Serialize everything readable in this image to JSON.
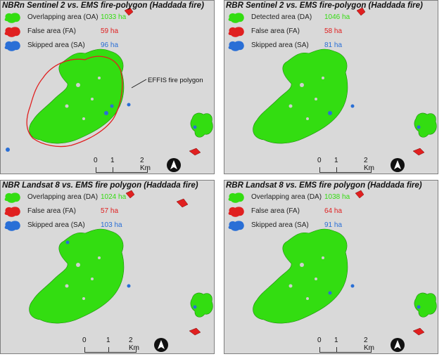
{
  "panels": [
    {
      "title": "NBRn Sentinel 2 vs. EMS fire-polygon (Haddada fire)",
      "legend": [
        {
          "label": "Overlapping area (OA)",
          "value": "1033 ha",
          "color": "#33dd11"
        },
        {
          "label": "False area (FA)",
          "value": "59 ha",
          "color": "#e02020"
        },
        {
          "label": "Skipped area (SA)",
          "value": "96 ha",
          "color": "#2a6fd6"
        }
      ],
      "annotation": "EFFIS fire polygon",
      "scale_labels": [
        "0",
        "1",
        "2 Km"
      ]
    },
    {
      "title": "RBR Sentinel 2 vs. EMS fire-polygon (Haddada fire)",
      "legend": [
        {
          "label": "Detected area (DA)",
          "value": "1046 ha",
          "color": "#33dd11"
        },
        {
          "label": "False area (FA)",
          "value": "58 ha",
          "color": "#e02020"
        },
        {
          "label": "Skipped area (SA)",
          "value": "81 ha",
          "color": "#2a6fd6"
        }
      ],
      "scale_labels": [
        "0",
        "1",
        "2 Km"
      ]
    },
    {
      "title": "NBR Landsat 8 vs. EMS fire polygon (Haddada fire)",
      "legend": [
        {
          "label": "Overlapping area (DA)",
          "value": "1024 ha",
          "color": "#33dd11"
        },
        {
          "label": "False area (FA)",
          "value": "57 ha",
          "color": "#e02020"
        },
        {
          "label": "Skipped area (SA)",
          "value": "103 ha",
          "color": "#2a6fd6"
        }
      ],
      "scale_labels": [
        "0",
        "1",
        "2 Km"
      ]
    },
    {
      "title": "RBR Landsat 8 vs. EMS fire polygon (Haddada fire)",
      "legend": [
        {
          "label": "Overlapping area (DA)",
          "value": "1038 ha",
          "color": "#33dd11"
        },
        {
          "label": "False area (FA)",
          "value": "64 ha",
          "color": "#e02020"
        },
        {
          "label": "Skipped area (SA)",
          "value": "91 ha",
          "color": "#2a6fd6"
        }
      ],
      "scale_labels": [
        "0",
        "1",
        "2 Km"
      ]
    }
  ],
  "colors": {
    "background": "#d9d9d9",
    "overlap": "#33dd11",
    "false_area": "#e02020",
    "skipped": "#2a6fd6",
    "polygon_outline": "#e02020"
  },
  "icons": [
    "north-arrow-icon"
  ]
}
